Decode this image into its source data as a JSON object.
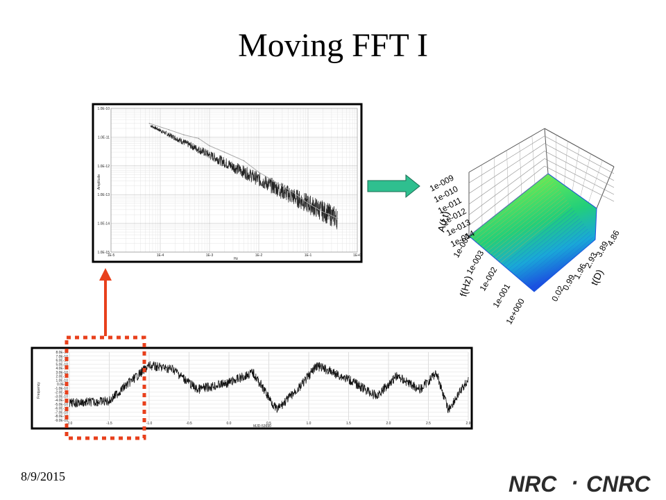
{
  "slide": {
    "title": "Moving FFT I",
    "date": "8/9/2015"
  },
  "logo": {
    "left": "NRC",
    "sep": "·",
    "right": "CNRC"
  },
  "colors": {
    "arrow_green": "#2fbf8f",
    "arrow_red": "#e8401c",
    "dashed_box": "#e8401c"
  },
  "chart_data": [
    {
      "type": "line",
      "ylabel": "Amplitude",
      "xlabel": "Hz",
      "xscale": "log",
      "yscale": "log",
      "x_ticks": [
        "1E-5",
        "1E-4",
        "1E-3",
        "1E-2",
        "1E-1",
        "1E+0"
      ],
      "y_ticks": [
        "1.0E-10",
        "1.0E-11",
        "1.0E-12",
        "1.0E-13",
        "1.0E-14",
        "1.0E-15"
      ],
      "xlim": [
        1e-05,
        1
      ],
      "ylim": [
        1e-15,
        1e-10
      ],
      "grid": true,
      "series": [
        {
          "x": [
            6e-05,
            0.00015,
            0.0003,
            0.0006,
            0.001,
            0.002,
            0.005,
            0.01,
            0.02,
            0.05,
            0.1,
            0.2,
            0.4
          ],
          "y": [
            3e-11,
            1.8e-11,
            1.2e-11,
            9e-12,
            5e-12,
            3e-12,
            1.5e-12,
            6e-13,
            3e-13,
            1.2e-13,
            5e-14,
            2.5e-14,
            1.5e-14
          ]
        }
      ]
    },
    {
      "type": "line",
      "ylabel": "Frequency",
      "xlabel": "MJD-53690",
      "x_ticks": [
        "-2.0",
        "-1.5",
        "-1.0",
        "-0.5",
        "0.0",
        "0.5",
        "1.0",
        "1.5",
        "2.0",
        "2.5",
        "2.9"
      ],
      "y_ticks": [
        "8.0E-10",
        "7.0E-10",
        "6.0E-10",
        "5.0E-10",
        "4.0E-10",
        "3.0E-10",
        "2.0E-10",
        "1.0E-10",
        "0.0E+0",
        "-1.0E-10",
        "-2.0E-10",
        "-3.0E-10",
        "-4.0E-10",
        "-5.0E-10",
        "-6.0E-10",
        "-7.0E-10",
        "-8.0E-10",
        "-9.0E-10"
      ],
      "grid": true
    },
    {
      "type": "surface",
      "zlabel": "A(f,t)",
      "xlabel": "f(Hz)",
      "ylabel": "t(D)",
      "z_ticks": [
        "1e-009",
        "1e-010",
        "1e-011",
        "1e-012",
        "1e-013",
        "1e-014"
      ],
      "f_ticks": [
        "1e-004",
        "1e-003",
        "1e-002",
        "1e-001",
        "1e+000"
      ],
      "t_ticks": [
        "4.86",
        "3.89",
        "2.93",
        "1.96",
        "0.99",
        "0.02"
      ]
    }
  ]
}
